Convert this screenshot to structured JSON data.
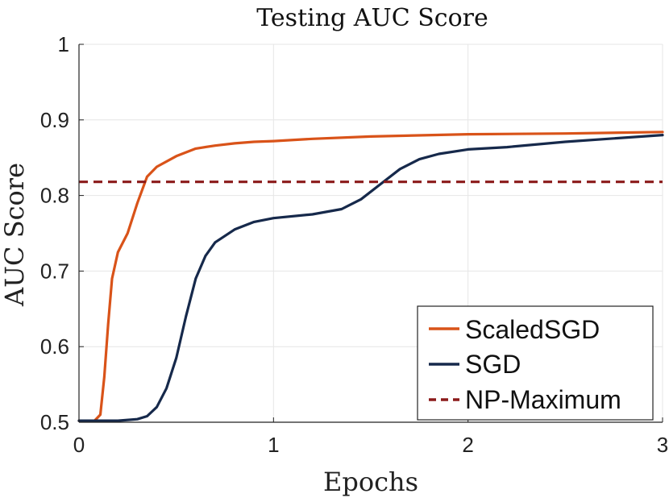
{
  "chart_data": {
    "type": "line",
    "title": "Testing AUC Score",
    "xlabel": "Epochs",
    "ylabel": "AUC Score",
    "xlim": [
      0,
      3
    ],
    "ylim": [
      0.5,
      1
    ],
    "grid": true,
    "legend_position": "bottom-right",
    "xticks": [
      "0",
      "1",
      "2",
      "3"
    ],
    "yticks": [
      "0.5",
      "0.6",
      "0.7",
      "0.8",
      "0.9",
      "1"
    ],
    "xtick_values": [
      0,
      1,
      2,
      3
    ],
    "ytick_values": [
      0.5,
      0.6,
      0.7,
      0.8,
      0.9,
      1.0
    ],
    "series": [
      {
        "name": "ScaledSGD",
        "color": "#d95319",
        "style": "solid",
        "x": [
          0,
          0.08,
          0.11,
          0.13,
          0.15,
          0.17,
          0.2,
          0.25,
          0.3,
          0.35,
          0.4,
          0.5,
          0.6,
          0.7,
          0.8,
          0.9,
          1.0,
          1.2,
          1.5,
          2.0,
          2.5,
          3.0
        ],
        "y": [
          0.502,
          0.502,
          0.51,
          0.56,
          0.63,
          0.69,
          0.725,
          0.75,
          0.79,
          0.825,
          0.838,
          0.852,
          0.862,
          0.866,
          0.869,
          0.871,
          0.872,
          0.875,
          0.878,
          0.881,
          0.882,
          0.884
        ]
      },
      {
        "name": "SGD",
        "color": "#16294b",
        "style": "solid",
        "x": [
          0,
          0.2,
          0.3,
          0.35,
          0.4,
          0.45,
          0.5,
          0.55,
          0.6,
          0.65,
          0.7,
          0.8,
          0.9,
          1.0,
          1.2,
          1.35,
          1.45,
          1.55,
          1.65,
          1.75,
          1.85,
          2.0,
          2.2,
          2.5,
          3.0
        ],
        "y": [
          0.502,
          0.502,
          0.504,
          0.508,
          0.52,
          0.545,
          0.585,
          0.64,
          0.69,
          0.72,
          0.738,
          0.755,
          0.765,
          0.77,
          0.775,
          0.782,
          0.795,
          0.815,
          0.835,
          0.848,
          0.855,
          0.861,
          0.864,
          0.871,
          0.88
        ]
      },
      {
        "name": "NP-Maximum",
        "color": "#8b1a1a",
        "style": "dashed",
        "x": [
          0,
          3
        ],
        "y": [
          0.818,
          0.818
        ]
      }
    ]
  }
}
